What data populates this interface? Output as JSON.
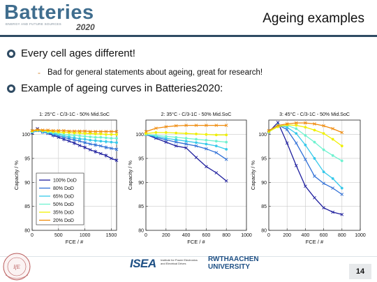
{
  "header": {
    "logo_text": "Batteries",
    "logo_subtitle": "ENERGY AND FUTURE SOURCES",
    "logo_year": "2020",
    "title": "Ageing examples"
  },
  "bullets": {
    "b1": "Every cell ages different!",
    "b2": "Bad for general statements about ageing, great for research!",
    "b3": "Example of ageing curves in Batteries2020:"
  },
  "colors": {
    "brand": "#3f6d8e",
    "rule": "#2f4b63",
    "dod100": "#1f1f9e",
    "dod80": "#2f6fd6",
    "dod65": "#36c9ea",
    "dod50": "#6ff2d0",
    "dod35": "#f0f000",
    "dod20": "#f08a0a"
  },
  "chart_data": [
    {
      "type": "line",
      "title": "1: 25°C - C/3-1C - 50% Mid.SoC",
      "xlabel": "FCE / #",
      "ylabel": "Capacity / %",
      "xlim": [
        0,
        1600
      ],
      "ylim": [
        80,
        103
      ],
      "xticks": [
        0,
        500,
        1000,
        1500
      ],
      "yticks": [
        80,
        85,
        90,
        95,
        100
      ],
      "grid": true,
      "legend_placement": "bottom-left",
      "series": [
        {
          "name": "100% DoD",
          "x": [
            0,
            100,
            200,
            300,
            400,
            500,
            600,
            700,
            800,
            900,
            1000,
            1100,
            1200,
            1300,
            1400,
            1500,
            1600
          ],
          "y": [
            100.3,
            101.2,
            100.6,
            100.2,
            99.8,
            99.4,
            99.0,
            98.6,
            98.2,
            97.7,
            97.3,
            96.8,
            96.4,
            96.0,
            95.6,
            95.0,
            94.6
          ]
        },
        {
          "name": "80% DoD",
          "x": [
            0,
            100,
            200,
            300,
            400,
            500,
            600,
            700,
            800,
            900,
            1000,
            1100,
            1200,
            1300,
            1400,
            1500,
            1600
          ],
          "y": [
            100.4,
            100.8,
            100.5,
            100.3,
            100.0,
            99.7,
            99.4,
            99.1,
            98.9,
            98.6,
            98.3,
            98.0,
            97.8,
            97.6,
            97.3,
            97.1,
            96.9
          ]
        },
        {
          "name": "65% DoD",
          "x": [
            0,
            100,
            200,
            300,
            400,
            500,
            600,
            700,
            800,
            900,
            1000,
            1100,
            1200,
            1300,
            1400,
            1500,
            1600
          ],
          "y": [
            100.5,
            100.8,
            100.6,
            100.4,
            100.2,
            100.0,
            99.7,
            99.5,
            99.3,
            99.1,
            99.0,
            98.8,
            98.7,
            98.6,
            98.5,
            98.4,
            98.3
          ]
        },
        {
          "name": "50% DoD",
          "x": [
            0,
            100,
            200,
            300,
            400,
            500,
            600,
            700,
            800,
            900,
            1000,
            1100,
            1200,
            1300,
            1400,
            1500,
            1600
          ],
          "y": [
            100.6,
            100.9,
            100.7,
            100.5,
            100.4,
            100.2,
            100.0,
            99.9,
            99.8,
            99.7,
            99.6,
            99.5,
            99.4,
            99.4,
            99.3,
            99.2,
            99.2
          ]
        },
        {
          "name": "35% DoD",
          "x": [
            0,
            100,
            200,
            300,
            400,
            500,
            600,
            700,
            800,
            900,
            1000,
            1100,
            1200,
            1300,
            1400,
            1500,
            1600
          ],
          "y": [
            100.7,
            100.9,
            100.8,
            100.7,
            100.6,
            100.5,
            100.4,
            100.4,
            100.3,
            100.3,
            100.2,
            100.2,
            100.1,
            100.1,
            100.0,
            100.0,
            100.0
          ]
        },
        {
          "name": "20% DoD",
          "x": [
            0,
            100,
            200,
            300,
            400,
            500,
            600,
            700,
            800,
            900,
            1000,
            1100,
            1200,
            1300,
            1400,
            1500,
            1600
          ],
          "y": [
            100.8,
            101.0,
            100.9,
            100.9,
            100.8,
            100.8,
            100.8,
            100.7,
            100.7,
            100.7,
            100.7,
            100.6,
            100.6,
            100.6,
            100.6,
            100.6,
            100.6
          ]
        }
      ]
    },
    {
      "type": "line",
      "title": "2: 35°C - C/3-1C - 50% Mid.SoC",
      "xlabel": "FCE / #",
      "ylabel": "Capacity / %",
      "xlim": [
        0,
        1000
      ],
      "ylim": [
        80,
        103
      ],
      "xticks": [
        0,
        200,
        400,
        600,
        800,
        1000
      ],
      "yticks": [
        80,
        85,
        90,
        95,
        100
      ],
      "grid": true,
      "legend_placement": "",
      "series": [
        {
          "name": "100% DoD",
          "x": [
            0,
            100,
            200,
            300,
            400,
            500,
            600,
            700,
            800
          ],
          "y": [
            100.0,
            99.2,
            98.4,
            97.6,
            97.2,
            95.2,
            93.3,
            92.0,
            90.3
          ]
        },
        {
          "name": "80% DoD",
          "x": [
            0,
            100,
            200,
            300,
            400,
            500,
            600,
            700,
            800
          ],
          "y": [
            100.0,
            99.4,
            98.9,
            98.4,
            98.0,
            97.6,
            97.0,
            96.2,
            94.8
          ]
        },
        {
          "name": "65% DoD",
          "x": [
            0,
            100,
            200,
            300,
            400,
            500,
            600,
            700,
            800
          ],
          "y": [
            100.0,
            99.6,
            99.2,
            98.9,
            98.6,
            98.3,
            98.0,
            97.6,
            96.9
          ]
        },
        {
          "name": "50% DoD",
          "x": [
            0,
            100,
            200,
            300,
            400,
            500,
            600,
            700,
            800
          ],
          "y": [
            100.0,
            99.8,
            99.6,
            99.4,
            99.2,
            99.0,
            98.8,
            98.6,
            98.4
          ]
        },
        {
          "name": "35% DoD",
          "x": [
            0,
            100,
            200,
            300,
            400,
            500,
            600,
            700,
            800
          ],
          "y": [
            100.2,
            100.4,
            100.4,
            100.3,
            100.2,
            100.1,
            100.0,
            99.9,
            99.9
          ]
        },
        {
          "name": "20% DoD",
          "x": [
            0,
            100,
            200,
            300,
            400,
            500,
            600,
            700,
            800
          ],
          "y": [
            100.6,
            101.3,
            101.6,
            101.8,
            101.9,
            101.9,
            101.9,
            101.9,
            101.9
          ]
        }
      ]
    },
    {
      "type": "line",
      "title": "3: 45°C - C/3-1C - 50% Mid.SoC",
      "xlabel": "FCE / #",
      "ylabel": "Capacity / %",
      "xlim": [
        0,
        1000
      ],
      "ylim": [
        80,
        103
      ],
      "xticks": [
        0,
        200,
        400,
        600,
        800,
        1000
      ],
      "yticks": [
        80,
        85,
        90,
        95,
        100
      ],
      "grid": true,
      "legend_placement": "",
      "series": [
        {
          "name": "100% DoD",
          "x": [
            0,
            100,
            200,
            300,
            400,
            500,
            600,
            700,
            800
          ],
          "y": [
            100.5,
            102.5,
            98.2,
            93.5,
            89.2,
            86.8,
            84.7,
            83.8,
            83.3
          ]
        },
        {
          "name": "80% DoD",
          "x": [
            0,
            100,
            200,
            300,
            400,
            500,
            600,
            700,
            800
          ],
          "y": [
            100.5,
            102.0,
            101.0,
            98.2,
            94.8,
            91.3,
            89.8,
            88.8,
            87.5
          ]
        },
        {
          "name": "65% DoD",
          "x": [
            0,
            100,
            200,
            300,
            400,
            500,
            600,
            700,
            800
          ],
          "y": [
            100.5,
            102.0,
            101.5,
            100.2,
            97.8,
            95.0,
            92.2,
            90.8,
            88.8
          ]
        },
        {
          "name": "50% DoD",
          "x": [
            0,
            100,
            200,
            300,
            400,
            500,
            600,
            700,
            800
          ],
          "y": [
            100.5,
            101.8,
            101.9,
            101.2,
            99.8,
            98.4,
            96.8,
            95.6,
            94.5
          ]
        },
        {
          "name": "35% DoD",
          "x": [
            0,
            100,
            200,
            300,
            400,
            500,
            600,
            700,
            800
          ],
          "y": [
            100.6,
            101.6,
            102.0,
            101.9,
            101.5,
            100.9,
            100.2,
            99.0,
            97.6
          ]
        },
        {
          "name": "20% DoD",
          "x": [
            0,
            100,
            200,
            300,
            400,
            500,
            600,
            700,
            800
          ],
          "y": [
            100.8,
            101.9,
            102.2,
            102.4,
            102.4,
            102.2,
            101.8,
            101.2,
            100.4
          ]
        }
      ]
    }
  ],
  "footer": {
    "seal_text": "1982 - 2015 · INSTITUT FÜR ENERGIEWANDLUNG",
    "isea_word": "ISEA",
    "isea_sub": "Institute for Power Electronics and Electrical Drives",
    "rwth_a": "RWTHAACHEN",
    "rwth_b": "UNIVERSITY",
    "page": "14"
  }
}
